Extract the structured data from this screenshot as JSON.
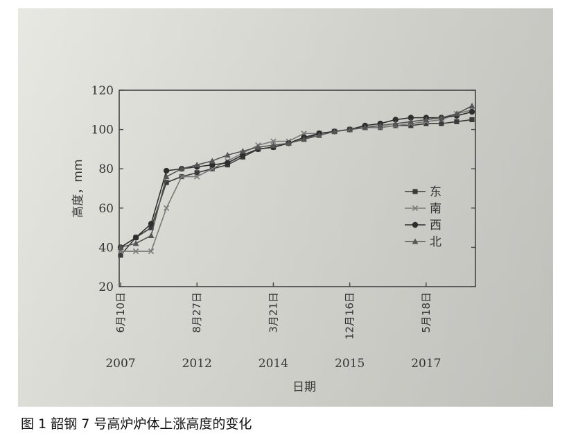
{
  "caption": "图 1  韶钢 7 号高炉炉体上涨高度的变化",
  "chart_data": {
    "type": "line",
    "xlabel": "日期",
    "ylabel": "高度，mm",
    "ylim": [
      20,
      120
    ],
    "yticks": [
      20,
      40,
      60,
      80,
      100,
      120
    ],
    "x_tick_labels": [
      {
        "date": "6月10日",
        "year": "2007",
        "index": 0
      },
      {
        "date": "8月27日",
        "year": "2012",
        "index": 5
      },
      {
        "date": "3月21日",
        "year": "2014",
        "index": 10
      },
      {
        "date": "12月16日",
        "year": "2015",
        "index": 15
      },
      {
        "date": "5月18日",
        "year": "2017",
        "index": 20
      }
    ],
    "legend_position": "right",
    "grid": false,
    "series": [
      {
        "name": "东",
        "marker": "square",
        "values": [
          36,
          45,
          50,
          73,
          76,
          78,
          80,
          82,
          86,
          90,
          91,
          93,
          95,
          98,
          99,
          100,
          101,
          101,
          102,
          102,
          103,
          103,
          104,
          105
        ]
      },
      {
        "name": "南",
        "marker": "x",
        "values": [
          38,
          38,
          38,
          60,
          76,
          76,
          80,
          84,
          88,
          92,
          94,
          94,
          98,
          98,
          99,
          100,
          101,
          101,
          102,
          103,
          104,
          105,
          108,
          110
        ]
      },
      {
        "name": "西",
        "marker": "circle",
        "values": [
          40,
          45,
          52,
          79,
          80,
          81,
          82,
          83,
          87,
          90,
          91,
          93,
          96,
          98,
          99,
          100,
          102,
          103,
          105,
          106,
          106,
          106,
          107,
          109
        ]
      },
      {
        "name": "北",
        "marker": "triangle",
        "values": [
          40,
          42,
          46,
          76,
          80,
          82,
          84,
          87,
          89,
          91,
          92,
          93,
          95,
          97,
          99,
          100,
          101,
          102,
          103,
          104,
          105,
          106,
          108,
          112
        ]
      }
    ]
  }
}
